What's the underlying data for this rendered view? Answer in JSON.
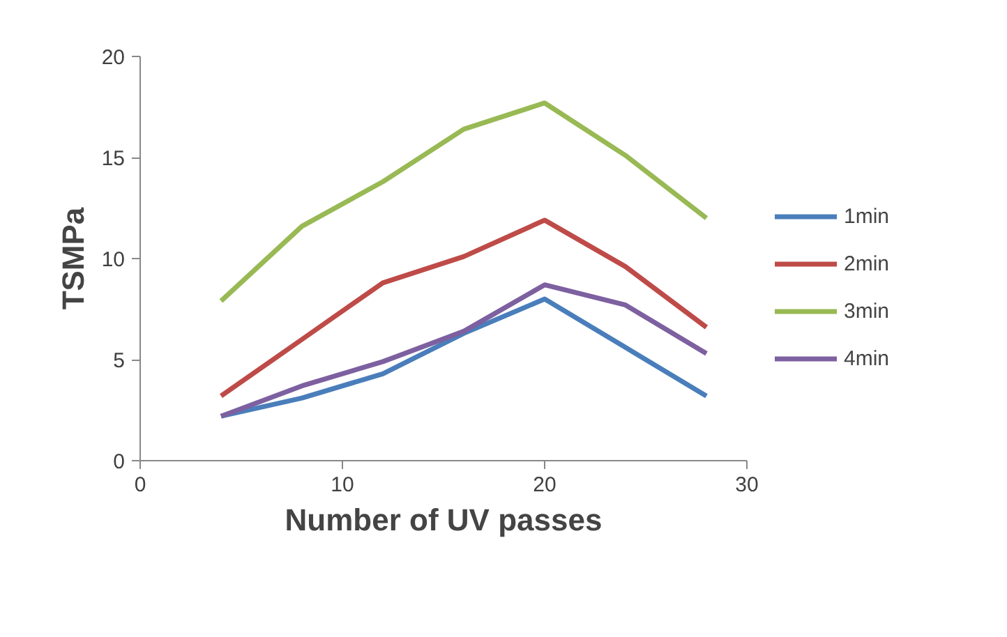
{
  "chart_data": {
    "type": "line",
    "xlabel": "Number of UV passes",
    "ylabel": "TSMPa",
    "x": [
      4,
      8,
      12,
      16,
      20,
      24,
      28
    ],
    "xlim": [
      0,
      30
    ],
    "xticks": [
      0,
      10,
      20,
      30
    ],
    "ylim": [
      0,
      20
    ],
    "yticks": [
      0,
      5,
      10,
      15,
      20
    ],
    "grid": false,
    "legend": "right",
    "marker": "none",
    "line_style": "solid",
    "series": [
      {
        "name": "1min",
        "color": "#4a7ebb",
        "values": [
          2.2,
          3.1,
          4.3,
          6.3,
          8.0,
          5.6,
          3.2
        ]
      },
      {
        "name": "2min",
        "color": "#be4b48",
        "values": [
          3.2,
          6.0,
          8.8,
          10.1,
          11.9,
          9.6,
          6.6
        ]
      },
      {
        "name": "3min",
        "color": "#98b954",
        "values": [
          7.9,
          11.6,
          13.8,
          16.4,
          17.7,
          15.1,
          12.0
        ]
      },
      {
        "name": "4min",
        "color": "#7d60a0",
        "values": [
          2.2,
          3.7,
          4.9,
          6.4,
          8.7,
          7.7,
          5.3
        ]
      }
    ]
  }
}
